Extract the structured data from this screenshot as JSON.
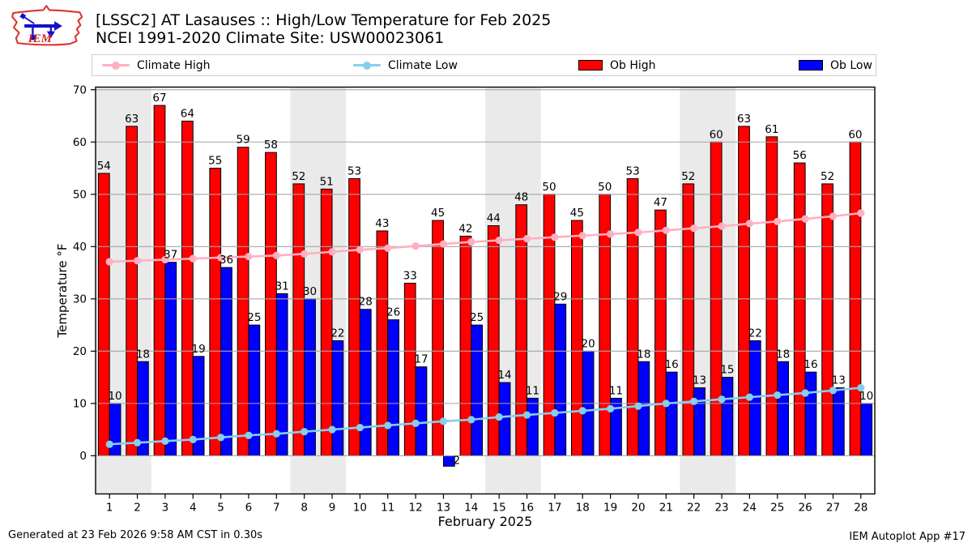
{
  "header": {
    "title_line1": "[LSSC2] AT Lasauses :: High/Low Temperature for Feb 2025",
    "title_line2": "NCEI 1991-2020 Climate Site: USW00023061",
    "logo_text": "IEM"
  },
  "legend": [
    {
      "label": "Climate High",
      "swatch": "line",
      "color": "#ffb0c0"
    },
    {
      "label": "Climate Low",
      "swatch": "line",
      "color": "#87ceeb"
    },
    {
      "label": "Ob High",
      "swatch": "rect",
      "color": "#ff0000"
    },
    {
      "label": "Ob Low",
      "swatch": "rect",
      "color": "#0000ff"
    }
  ],
  "footer": {
    "left": "Generated at 23 Feb 2026 9:58 AM CST in 0.30s",
    "right": "IEM Autoplot App #17"
  },
  "chart_data": {
    "type": "bar",
    "title": "[LSSC2] AT Lasauses :: High/Low Temperature for Feb 2025 — NCEI 1991-2020 Climate Site: USW00023061",
    "xlabel": "February 2025",
    "ylabel": "Temperature °F",
    "x": [
      1,
      2,
      3,
      4,
      5,
      6,
      7,
      8,
      9,
      10,
      11,
      12,
      13,
      14,
      15,
      16,
      17,
      18,
      19,
      20,
      21,
      22,
      23,
      24,
      25,
      26,
      27,
      28
    ],
    "series": [
      {
        "name": "Ob High",
        "kind": "bar",
        "color": "#ff0000",
        "values": [
          54,
          63,
          67,
          64,
          55,
          59,
          58,
          52,
          51,
          53,
          43,
          33,
          45,
          42,
          44,
          48,
          50,
          45,
          50,
          53,
          47,
          52,
          60,
          63,
          61,
          56,
          52,
          60
        ]
      },
      {
        "name": "Ob Low",
        "kind": "bar",
        "color": "#0000ff",
        "values": [
          10,
          18,
          37,
          19,
          36,
          25,
          31,
          30,
          22,
          28,
          26,
          17,
          -2,
          25,
          14,
          11,
          29,
          20,
          11,
          18,
          16,
          13,
          15,
          22,
          18,
          16,
          13,
          10
        ]
      },
      {
        "name": "Climate High",
        "kind": "line",
        "color": "#ffb0c0",
        "values": [
          37.1,
          37.3,
          37.5,
          37.7,
          37.9,
          38.1,
          38.3,
          38.6,
          39.0,
          39.4,
          39.7,
          40.1,
          40.5,
          40.9,
          41.2,
          41.5,
          41.8,
          42.1,
          42.4,
          42.7,
          43.1,
          43.5,
          43.9,
          44.4,
          44.8,
          45.3,
          45.8,
          46.4
        ]
      },
      {
        "name": "Climate Low",
        "kind": "line",
        "color": "#87ceeb",
        "values": [
          2.2,
          2.5,
          2.8,
          3.1,
          3.5,
          3.9,
          4.2,
          4.6,
          5.0,
          5.4,
          5.8,
          6.2,
          6.6,
          6.9,
          7.4,
          7.8,
          8.2,
          8.6,
          9.0,
          9.5,
          10.0,
          10.4,
          10.8,
          11.2,
          11.6,
          12.0,
          12.5,
          13.0
        ]
      }
    ],
    "ylim": [
      -7.3,
      70.5
    ],
    "yticks": [
      0,
      10,
      20,
      30,
      40,
      50,
      60,
      70
    ],
    "weekend_bands": [
      [
        1,
        2
      ],
      [
        8,
        9
      ],
      [
        15,
        16
      ],
      [
        22,
        23
      ]
    ],
    "band_color": "#eaeaea",
    "grid_color": "#a6a6a6",
    "grid": true,
    "legend_position": "top"
  }
}
